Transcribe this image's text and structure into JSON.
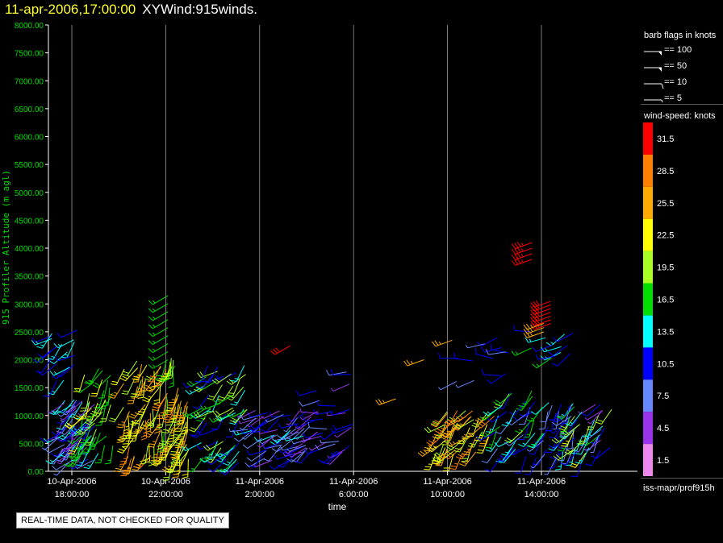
{
  "header": {
    "timestamp": "11-apr-2006,17:00:00",
    "product": "XYWind:915winds."
  },
  "notice": "REAL-TIME DATA, NOT CHECKED FOR QUALITY",
  "source_label": "iss-mapr/prof915h",
  "chart_data": {
    "type": "scatter",
    "subtype": "wind-barb time-height",
    "ylabel": "915 Profiler Altitude (m agl)",
    "xlabel": "time",
    "ylim": [
      0,
      8000
    ],
    "yticks": [
      "8000.00",
      "7500.00",
      "7000.00",
      "6500.00",
      "6000.00",
      "5500.00",
      "5000.00",
      "4500.00",
      "4000.00",
      "3500.00",
      "3000.00",
      "2500.00",
      "2000.00",
      "1500.00",
      "1000.00",
      "500.00",
      "0.00"
    ],
    "yticks_values": [
      8000,
      7500,
      7000,
      6500,
      6000,
      5500,
      5000,
      4500,
      4000,
      3500,
      3000,
      2500,
      2000,
      1500,
      1000,
      500,
      0
    ],
    "x_range_hours": [
      -0.5,
      16.5
    ],
    "xticks": [
      {
        "hour": 0,
        "line1": "10-Apr-2006",
        "line2": "18:00:00"
      },
      {
        "hour": 4,
        "line1": "10-Apr-2006",
        "line2": "22:00:00"
      },
      {
        "hour": 8,
        "line1": "11-Apr-2006",
        "line2": "2:00:00"
      },
      {
        "hour": 12,
        "line1": "11-Apr-2006",
        "line2": "6:00:00"
      },
      {
        "hour": 16,
        "line1": "11-Apr-2006",
        "line2": "10:00:00"
      },
      {
        "hour": 20,
        "line1": "11-Apr-2006",
        "line2": "14:00:00"
      }
    ],
    "grid": "vertical",
    "speed_units": "knots",
    "wind_clusters": [
      {
        "t0": -0.6,
        "t1": 1.0,
        "alt0": 150,
        "alt1": 1300,
        "spd0": 3,
        "spd1": 14,
        "n": 60,
        "dir": 220
      },
      {
        "t0": -1.0,
        "t1": 0.3,
        "alt0": 1600,
        "alt1": 2600,
        "spd0": 9,
        "spd1": 15,
        "n": 18,
        "dir": 230
      },
      {
        "t0": 0.4,
        "t1": 1.8,
        "alt0": 300,
        "alt1": 1900,
        "spd0": 14,
        "spd1": 22,
        "n": 40,
        "dir": 210
      },
      {
        "t0": 2.2,
        "t1": 4.2,
        "alt0": 200,
        "alt1": 2000,
        "spd0": 17,
        "spd1": 29,
        "n": 70,
        "dir": 200
      },
      {
        "t0": 4.2,
        "t1": 5.0,
        "alt0": 150,
        "alt1": 1500,
        "spd0": 18,
        "spd1": 28,
        "n": 40,
        "dir": 200
      },
      {
        "t0": 4.0,
        "t1": 4.4,
        "alt0": 1800,
        "alt1": 2100,
        "spd0": 15,
        "spd1": 25,
        "n": 8,
        "dir": 200
      },
      {
        "t0": 5.5,
        "t1": 7.5,
        "alt0": 150,
        "alt1": 1900,
        "spd0": 10,
        "spd1": 20,
        "n": 60,
        "dir": 225
      },
      {
        "t0": 7.5,
        "t1": 10.5,
        "alt0": 150,
        "alt1": 1100,
        "spd0": 3,
        "spd1": 13,
        "n": 60,
        "dir": 240
      },
      {
        "t0": 10.3,
        "t1": 12.1,
        "alt0": 300,
        "alt1": 1800,
        "spd0": 4,
        "spd1": 12,
        "n": 30,
        "dir": 250
      },
      {
        "t0": 15.5,
        "t1": 18.0,
        "alt0": 300,
        "alt1": 1100,
        "spd0": 18,
        "spd1": 28,
        "n": 50,
        "dir": 220
      },
      {
        "t0": 18.0,
        "t1": 20.2,
        "alt0": 200,
        "alt1": 1500,
        "spd0": 8,
        "spd1": 20,
        "n": 40,
        "dir": 220
      },
      {
        "t0": 20.0,
        "t1": 21.5,
        "alt0": 200,
        "alt1": 1300,
        "spd0": 6,
        "spd1": 14,
        "n": 30,
        "dir": 210
      },
      {
        "t0": 21.2,
        "t1": 23.0,
        "alt0": 200,
        "alt1": 1200,
        "spd0": 4,
        "spd1": 24,
        "n": 40,
        "dir": 215
      },
      {
        "t0": 16.2,
        "t1": 18.8,
        "alt0": 1600,
        "alt1": 2400,
        "spd0": 6,
        "spd1": 12,
        "n": 12,
        "dir": 260
      },
      {
        "t0": 19.5,
        "t1": 21.5,
        "alt0": 2000,
        "alt1": 2500,
        "spd0": 10,
        "spd1": 16,
        "n": 12,
        "dir": 250
      }
    ],
    "wind_columns": [
      {
        "t": 4.1,
        "alt0": 2000,
        "alt1": 3150,
        "spd": 17,
        "n": 9,
        "dir": 240
      },
      {
        "t": 19.6,
        "alt0": 3800,
        "alt1": 4100,
        "spd": 33,
        "n": 4,
        "dir": 250
      },
      {
        "t": 20.4,
        "alt0": 2650,
        "alt1": 3050,
        "spd": 31,
        "n": 7,
        "dir": 250
      },
      {
        "t": 20.1,
        "alt0": 2500,
        "alt1": 2650,
        "spd": 26,
        "n": 3,
        "dir": 250
      }
    ],
    "wind_singles": [
      {
        "t": 9.3,
        "alt": 2250,
        "spd": 31,
        "dir": 240
      },
      {
        "t": 13.8,
        "alt": 1300,
        "spd": 26,
        "dir": 250
      },
      {
        "t": 15.0,
        "alt": 2000,
        "spd": 26,
        "dir": 250
      },
      {
        "t": 16.2,
        "alt": 2350,
        "spd": 26,
        "dir": 250
      }
    ],
    "legend": {
      "flags_title": "barb flags in knots",
      "flags": [
        {
          "label": "== 100",
          "value": 100
        },
        {
          "label": "== 50",
          "value": 50
        },
        {
          "label": "== 10",
          "value": 10
        },
        {
          "label": "== 5",
          "value": 5
        }
      ],
      "speed_title": "wind-speed: knots",
      "speed_bins": [
        {
          "label": "31.5",
          "color": "#ff0000"
        },
        {
          "label": "28.5",
          "color": "#ff7f00"
        },
        {
          "label": "25.5",
          "color": "#ffaa00"
        },
        {
          "label": "22.5",
          "color": "#ffff00"
        },
        {
          "label": "19.5",
          "color": "#aaff22"
        },
        {
          "label": "16.5",
          "color": "#00dd00"
        },
        {
          "label": "13.5",
          "color": "#00ffff"
        },
        {
          "label": "10.5",
          "color": "#0000ff"
        },
        {
          "label": "7.5",
          "color": "#6688ff"
        },
        {
          "label": "4.5",
          "color": "#9933ee"
        },
        {
          "label": "1.5",
          "color": "#ee88ee"
        }
      ]
    }
  }
}
